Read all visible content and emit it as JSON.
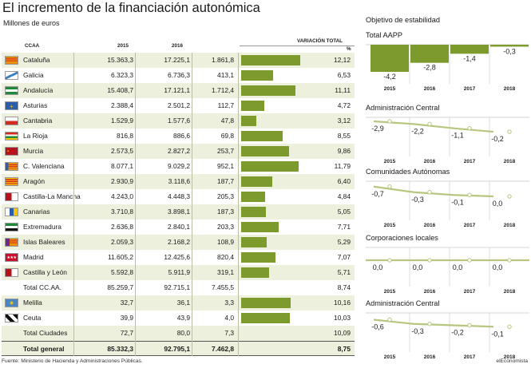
{
  "title": "El incremento de la financiación autonómica",
  "subtitle": "Millones de euros",
  "table": {
    "headers": {
      "ccaa": "CCAA",
      "y2015": "2015",
      "y2016": "2016",
      "variacion": "VARIACIÓN TOTAL",
      "pct": "%"
    },
    "rows": [
      {
        "name": "Cataluña",
        "flag": "cataluna-flag",
        "v2015": "15.363,3",
        "v2016": "17.225,1",
        "var": "1.861,8",
        "pct": "12,12",
        "pctv": 12.12,
        "shade": true
      },
      {
        "name": "Galicia",
        "flag": "galicia-flag",
        "v2015": "6.323,3",
        "v2016": "6.736,3",
        "var": "413,1",
        "pct": "6,53",
        "pctv": 6.53,
        "shade": false
      },
      {
        "name": "Andalucía",
        "flag": "andalucia-flag",
        "v2015": "15.408,7",
        "v2016": "17.121,1",
        "var": "1.712,4",
        "pct": "11,11",
        "pctv": 11.11,
        "shade": true
      },
      {
        "name": "Asturias",
        "flag": "asturias-flag",
        "v2015": "2.388,4",
        "v2016": "2.501,2",
        "var": "112,7",
        "pct": "4,72",
        "pctv": 4.72,
        "shade": false
      },
      {
        "name": "Cantabria",
        "flag": "cantabria-flag",
        "v2015": "1.529,9",
        "v2016": "1.577,6",
        "var": "47,8",
        "pct": "3,12",
        "pctv": 3.12,
        "shade": true
      },
      {
        "name": "La Rioja",
        "flag": "la-rioja-flag",
        "v2015": "816,8",
        "v2016": "886,6",
        "var": "69,8",
        "pct": "8,55",
        "pctv": 8.55,
        "shade": false
      },
      {
        "name": "Murcia",
        "flag": "murcia-flag",
        "v2015": "2.573,5",
        "v2016": "2.827,2",
        "var": "253,7",
        "pct": "9,86",
        "pctv": 9.86,
        "shade": true
      },
      {
        "name": "C. Valenciana",
        "flag": "valenciana-flag",
        "v2015": "8.077,1",
        "v2016": "9.029,2",
        "var": "952,1",
        "pct": "11,79",
        "pctv": 11.79,
        "shade": false
      },
      {
        "name": "Aragón",
        "flag": "aragon-flag",
        "v2015": "2.930,9",
        "v2016": "3.118,6",
        "var": "187,7",
        "pct": "6,40",
        "pctv": 6.4,
        "shade": true
      },
      {
        "name": "Castilla-La Mancha",
        "flag": "castilla-la-mancha-flag",
        "v2015": "4.243,0",
        "v2016": "4.448,3",
        "var": "205,3",
        "pct": "4,84",
        "pctv": 4.84,
        "shade": false
      },
      {
        "name": "Canarias",
        "flag": "canarias-flag",
        "v2015": "3.710,8",
        "v2016": "3.898,1",
        "var": "187,3",
        "pct": "5,05",
        "pctv": 5.05,
        "shade": true
      },
      {
        "name": "Extremadura",
        "flag": "extremadura-flag",
        "v2015": "2.636,8",
        "v2016": "2.840,1",
        "var": "203,3",
        "pct": "7,71",
        "pctv": 7.71,
        "shade": false
      },
      {
        "name": "Islas Baleares",
        "flag": "baleares-flag",
        "v2015": "2.059,3",
        "v2016": "2.168,2",
        "var": "108,9",
        "pct": "5,29",
        "pctv": 5.29,
        "shade": true
      },
      {
        "name": "Madrid",
        "flag": "madrid-flag",
        "v2015": "11.605,2",
        "v2016": "12.425,6",
        "var": "820,4",
        "pct": "7,07",
        "pctv": 7.07,
        "shade": false
      },
      {
        "name": "Castilla y León",
        "flag": "castilla-y-leon-flag",
        "v2015": "5.592,8",
        "v2016": "5.911,9",
        "var": "319,1",
        "pct": "5,71",
        "pctv": 5.71,
        "shade": true
      },
      {
        "name": "Total CC.AA.",
        "flag": "",
        "v2015": "85.259,7",
        "v2016": "92.715,1",
        "var": "7.455,5",
        "pct": "8,74",
        "pctv": null,
        "shade": false
      },
      {
        "name": "Melilla",
        "flag": "melilla-flag",
        "v2015": "32,7",
        "v2016": "36,1",
        "var": "3,3",
        "pct": "10,16",
        "pctv": 10.16,
        "shade": true
      },
      {
        "name": "Ceuta",
        "flag": "ceuta-flag",
        "v2015": "39,9",
        "v2016": "43,9",
        "var": "4,0",
        "pct": "10,03",
        "pctv": 10.03,
        "shade": false
      },
      {
        "name": "Total Ciudades",
        "flag": "",
        "v2015": "72,7",
        "v2016": "80,0",
        "var": "7,3",
        "pct": "10,09",
        "pctv": null,
        "shade": true
      },
      {
        "name": "Total general",
        "flag": "",
        "v2015": "85.332,3",
        "v2016": "92.795,1",
        "var": "7.462,8",
        "pct": "8,75",
        "pctv": null,
        "shade": true,
        "bold": true
      }
    ]
  },
  "right_panel": {
    "heading": "Objetivo de estabilidad",
    "years": [
      "2015",
      "2016",
      "2017",
      "2018"
    ]
  },
  "chart_data": [
    {
      "type": "bar",
      "title": "Variación total",
      "categories": [
        "Cataluña",
        "Galicia",
        "Andalucía",
        "Asturias",
        "Cantabria",
        "La Rioja",
        "Murcia",
        "C. Valenciana",
        "Aragón",
        "Castilla-La Mancha",
        "Canarias",
        "Extremadura",
        "Islas Baleares",
        "Madrid",
        "Castilla y León",
        "Melilla",
        "Ceuta"
      ],
      "values": [
        12.12,
        6.53,
        11.11,
        4.72,
        3.12,
        8.55,
        9.86,
        11.79,
        6.4,
        4.84,
        5.05,
        7.71,
        5.29,
        7.07,
        5.71,
        10.16,
        10.03
      ],
      "ylabel": "%",
      "xlim": [
        0,
        12.5
      ]
    },
    {
      "type": "bar",
      "title": "Total AAPP",
      "categories": [
        "2015",
        "2016",
        "2017",
        "2018"
      ],
      "values": [
        -4.2,
        -2.8,
        -1.4,
        -0.3
      ],
      "labels": [
        "-4,2",
        "-2,8",
        "-1,4",
        "-0,3"
      ]
    },
    {
      "type": "line",
      "title": "Administración Central",
      "categories": [
        "2015",
        "2016",
        "2017",
        "2018"
      ],
      "values": [
        -2.9,
        -2.2,
        -1.1,
        -0.2
      ],
      "labels": [
        "-2,9",
        "-2,2",
        "-1,1",
        "-0,2"
      ]
    },
    {
      "type": "line",
      "title": "Comunidades Autónomas",
      "categories": [
        "2015",
        "2016",
        "2017",
        "2018"
      ],
      "values": [
        -0.7,
        -0.3,
        -0.1,
        0.0
      ],
      "labels": [
        "-0,7",
        "-0,3",
        "-0,1",
        "0,0"
      ]
    },
    {
      "type": "line",
      "title": "Corporaciones locales",
      "categories": [
        "2015",
        "2016",
        "2017",
        "2018"
      ],
      "values": [
        0.0,
        0.0,
        0.0,
        0.0
      ],
      "labels": [
        "0,0",
        "0,0",
        "0,0",
        "0,0"
      ]
    },
    {
      "type": "line",
      "title": "Administración Central",
      "categories": [
        "2015",
        "2016",
        "2017",
        "2018"
      ],
      "values": [
        -0.6,
        -0.3,
        -0.2,
        -0.1
      ],
      "labels": [
        "-0,6",
        "-0,3",
        "-0,2",
        "-0,1"
      ]
    }
  ],
  "colors": {
    "accent": "#7d9b2d",
    "shade": "#edf0dd",
    "line": "#c5d49a"
  },
  "footer": "Fuente: Ministerio de Hacienda y Administraciones Públicas.",
  "brand": "elEconomista"
}
